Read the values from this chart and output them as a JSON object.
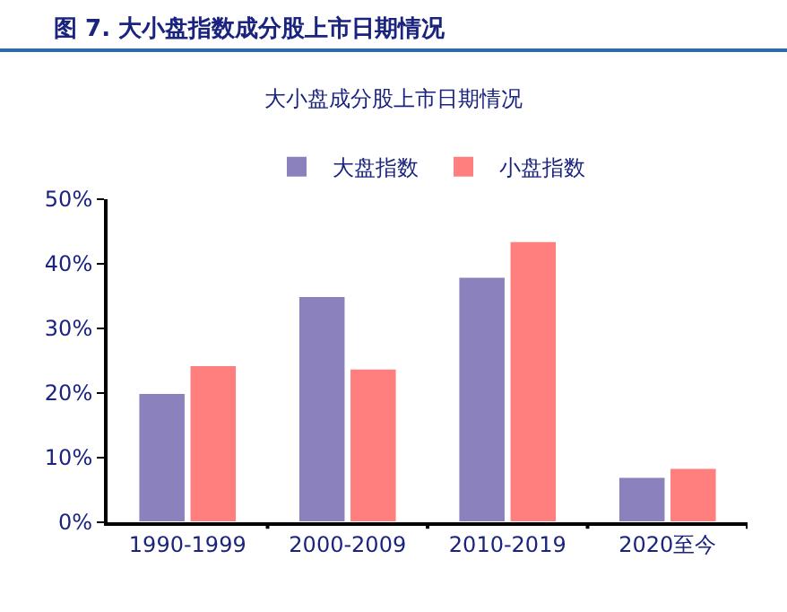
{
  "chart_data": {
    "type": "bar",
    "title": "图 7. 大小盘指数成分股上市日期情况",
    "subtitle": "大小盘成分股上市日期情况",
    "categories": [
      "1990-1999",
      "2000-2009",
      "2010-2019",
      "2020至今"
    ],
    "series": [
      {
        "name": "大盘指数",
        "color": "#8b82bd",
        "values": [
          20,
          35,
          38,
          7
        ]
      },
      {
        "name": "小盘指数",
        "color": "#ff7f7f",
        "values": [
          24.3,
          23.8,
          43.5,
          8.4
        ]
      }
    ],
    "ylim": [
      0,
      50
    ],
    "yticks": [
      {
        "value": 0,
        "label": "0%"
      },
      {
        "value": 10,
        "label": "10%"
      },
      {
        "value": 20,
        "label": "20%"
      },
      {
        "value": 30,
        "label": "30%"
      },
      {
        "value": 40,
        "label": "40%"
      },
      {
        "value": 50,
        "label": "50%"
      }
    ],
    "grid": false,
    "legend": "top"
  }
}
